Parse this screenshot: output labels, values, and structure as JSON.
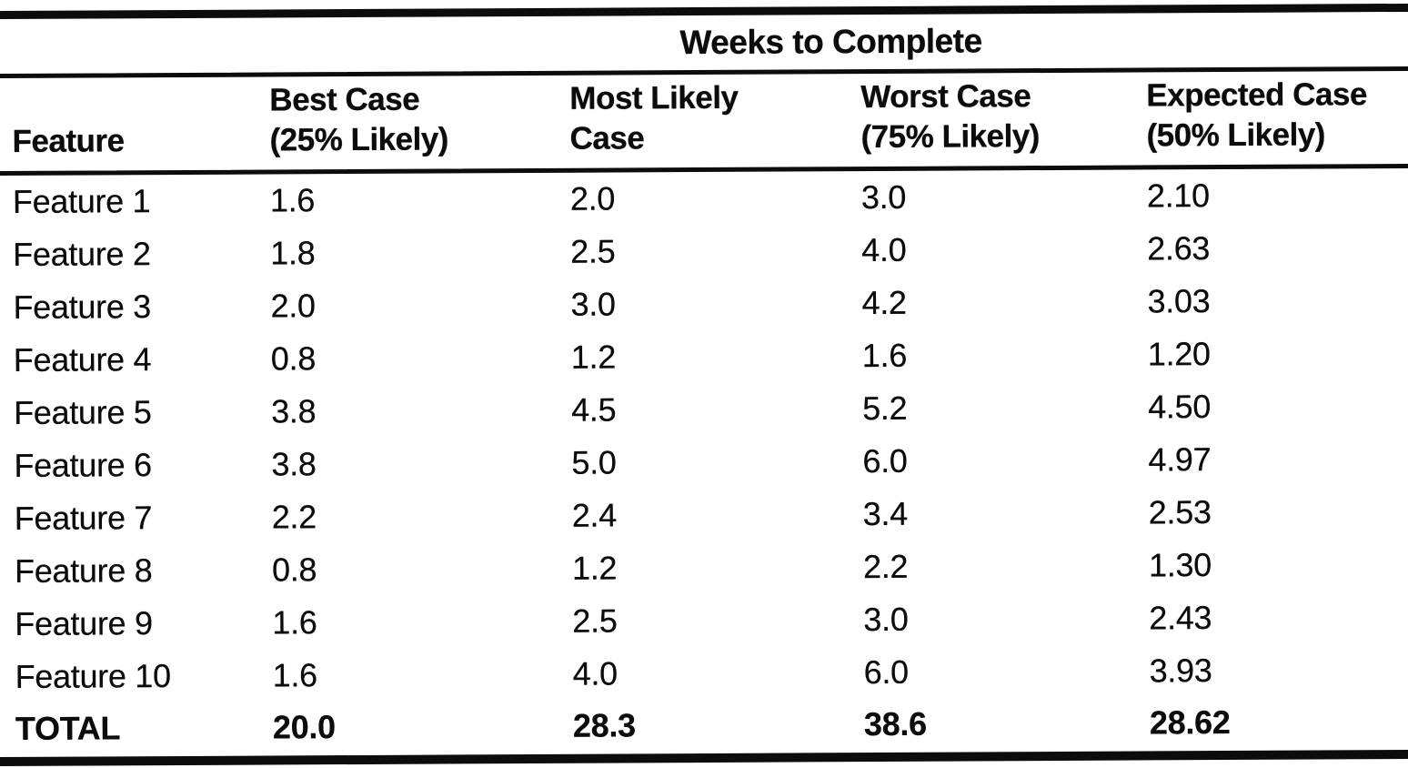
{
  "page": {
    "background": "#ffffff",
    "ink": "#0c0c0c"
  },
  "table": {
    "spanning_header": "Weeks to Complete",
    "columns": [
      {
        "lines": [
          "Feature"
        ]
      },
      {
        "lines": [
          "Best Case",
          "(25% Likely)"
        ]
      },
      {
        "lines": [
          "Most Likely",
          "Case"
        ]
      },
      {
        "lines": [
          "Worst Case",
          "(75% Likely)"
        ]
      },
      {
        "lines": [
          "Expected Case",
          "(50% Likely)"
        ]
      }
    ],
    "rows": [
      {
        "feature": "Feature 1",
        "best": "1.6",
        "likely": "2.0",
        "worst": "3.0",
        "expected": "2.10"
      },
      {
        "feature": "Feature 2",
        "best": "1.8",
        "likely": "2.5",
        "worst": "4.0",
        "expected": "2.63"
      },
      {
        "feature": "Feature 3",
        "best": "2.0",
        "likely": "3.0",
        "worst": "4.2",
        "expected": "3.03"
      },
      {
        "feature": "Feature 4",
        "best": "0.8",
        "likely": "1.2",
        "worst": "1.6",
        "expected": "1.20"
      },
      {
        "feature": "Feature 5",
        "best": "3.8",
        "likely": "4.5",
        "worst": "5.2",
        "expected": "4.50"
      },
      {
        "feature": "Feature 6",
        "best": "3.8",
        "likely": "5.0",
        "worst": "6.0",
        "expected": "4.97"
      },
      {
        "feature": "Feature 7",
        "best": "2.2",
        "likely": "2.4",
        "worst": "3.4",
        "expected": "2.53"
      },
      {
        "feature": "Feature 8",
        "best": "0.8",
        "likely": "1.2",
        "worst": "2.2",
        "expected": "1.30"
      },
      {
        "feature": "Feature 9",
        "best": "1.6",
        "likely": "2.5",
        "worst": "3.0",
        "expected": "2.43"
      },
      {
        "feature": "Feature 10",
        "best": "1.6",
        "likely": "4.0",
        "worst": "6.0",
        "expected": "3.93"
      }
    ],
    "total": {
      "feature": "TOTAL",
      "best": "20.0",
      "likely": "28.3",
      "worst": "38.6",
      "expected": "28.62"
    }
  }
}
